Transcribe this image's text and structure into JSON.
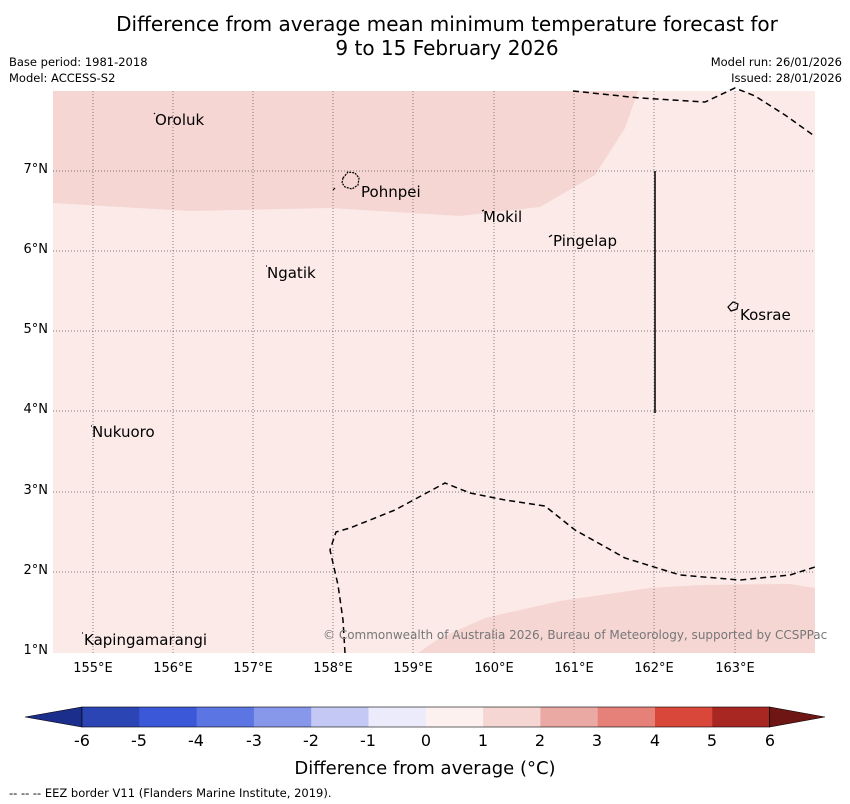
{
  "title_line1": "Difference from average mean minimum temperature forecast for",
  "title_line2": "9 to 15 February 2026",
  "meta": {
    "base_period": "Base period: 1981-2018",
    "model": "Model: ACCESS-S2",
    "model_run": "Model run: 26/01/2026",
    "issued": "Issued: 28/01/2026"
  },
  "map": {
    "lon_labels": [
      "155°E",
      "156°E",
      "157°E",
      "158°E",
      "159°E",
      "160°E",
      "161°E",
      "162°E",
      "163°E"
    ],
    "lat_labels": [
      "7°N",
      "6°N",
      "5°N",
      "4°N",
      "3°N",
      "2°N",
      "1°N"
    ],
    "places": [
      "Oroluk",
      "Pohnpei",
      "Mokil",
      "Pingelap",
      "Ngatik",
      "Kosrae",
      "Nukuoro",
      "Kapingamarangi"
    ],
    "shading_colors": {
      "light": "#fbeae8",
      "medium": "#f5d6d3"
    },
    "copyright": "© Commonwealth of Australia 2026, Bureau of Meteorology, supported by CCSPPac"
  },
  "colorbar": {
    "ticks": [
      "-6",
      "-5",
      "-4",
      "-3",
      "-2",
      "-1",
      "0",
      "1",
      "2",
      "3",
      "4",
      "5",
      "6"
    ],
    "colors": [
      "#1c2e8c",
      "#2b45b4",
      "#3b58d9",
      "#5b76e2",
      "#8797ea",
      "#c3c9f4",
      "#ebebfb",
      "#fdf1f0",
      "#f5d6d3",
      "#eba9a3",
      "#e58178",
      "#d9473b",
      "#a82723",
      "#6e1614"
    ],
    "label": "Difference from average (°C)"
  },
  "footer": "--  --  -- EEZ border V11 (Flanders Marine Institute, 2019)."
}
